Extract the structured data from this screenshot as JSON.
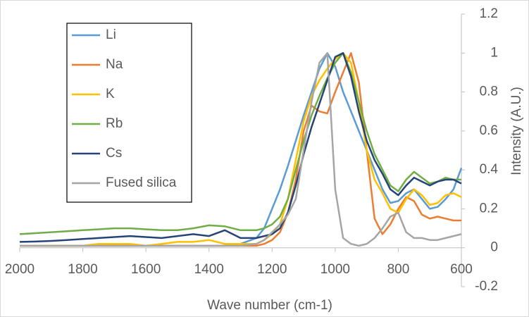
{
  "chart_data": {
    "type": "line",
    "x_label": "Wave number (cm-1)",
    "y_label": "Intensity (A.U.)",
    "x": [
      2000,
      1950,
      1900,
      1850,
      1800,
      1750,
      1700,
      1650,
      1600,
      1550,
      1500,
      1450,
      1400,
      1350,
      1300,
      1250,
      1225,
      1200,
      1175,
      1150,
      1125,
      1100,
      1075,
      1050,
      1025,
      1000,
      975,
      950,
      925,
      900,
      875,
      850,
      825,
      800,
      775,
      750,
      725,
      700,
      675,
      650,
      625,
      600
    ],
    "series": [
      {
        "name": "Li",
        "color": "#5b9bd5",
        "values": [
          0.01,
          0.01,
          0.01,
          0.01,
          0.01,
          0.01,
          0.01,
          0.01,
          0.01,
          0.01,
          0.01,
          0.01,
          0.01,
          0.01,
          0.02,
          0.05,
          0.1,
          0.2,
          0.3,
          0.42,
          0.55,
          0.68,
          0.8,
          0.92,
          1.0,
          0.93,
          0.8,
          0.7,
          0.6,
          0.5,
          0.4,
          0.3,
          0.23,
          0.24,
          0.28,
          0.3,
          0.25,
          0.2,
          0.21,
          0.25,
          0.3,
          0.41
        ]
      },
      {
        "name": "Na",
        "color": "#ed7d31",
        "values": [
          0.01,
          0.01,
          0.01,
          0.01,
          0.01,
          0.01,
          0.01,
          0.01,
          0.01,
          0.01,
          0.01,
          0.01,
          0.01,
          0.01,
          0.01,
          0.01,
          0.02,
          0.04,
          0.08,
          0.18,
          0.35,
          0.6,
          0.73,
          0.7,
          0.69,
          0.8,
          0.9,
          1.0,
          0.85,
          0.5,
          0.15,
          0.07,
          0.12,
          0.2,
          0.26,
          0.24,
          0.17,
          0.15,
          0.16,
          0.15,
          0.14,
          0.14
        ]
      },
      {
        "name": "K",
        "color": "#ffc000",
        "values": [
          0.01,
          0.01,
          0.01,
          0.01,
          0.01,
          0.02,
          0.02,
          0.02,
          0.01,
          0.02,
          0.03,
          0.03,
          0.04,
          0.02,
          0.02,
          0.02,
          0.04,
          0.07,
          0.12,
          0.25,
          0.45,
          0.65,
          0.78,
          0.86,
          0.92,
          0.97,
          1.0,
          0.95,
          0.75,
          0.5,
          0.35,
          0.28,
          0.2,
          0.18,
          0.25,
          0.3,
          0.27,
          0.22,
          0.23,
          0.27,
          0.28,
          0.26
        ]
      },
      {
        "name": "Rb",
        "color": "#70ad47",
        "values": [
          0.07,
          0.075,
          0.08,
          0.085,
          0.09,
          0.095,
          0.1,
          0.1,
          0.095,
          0.09,
          0.09,
          0.1,
          0.115,
          0.11,
          0.09,
          0.09,
          0.1,
          0.12,
          0.16,
          0.25,
          0.4,
          0.55,
          0.68,
          0.78,
          0.87,
          0.95,
          1.0,
          0.9,
          0.75,
          0.6,
          0.48,
          0.4,
          0.32,
          0.29,
          0.35,
          0.39,
          0.36,
          0.33,
          0.34,
          0.36,
          0.35,
          0.35
        ]
      },
      {
        "name": "Cs",
        "color": "#264478",
        "values": [
          0.03,
          0.032,
          0.035,
          0.04,
          0.045,
          0.05,
          0.055,
          0.06,
          0.055,
          0.05,
          0.06,
          0.07,
          0.06,
          0.09,
          0.05,
          0.05,
          0.06,
          0.07,
          0.1,
          0.18,
          0.32,
          0.48,
          0.62,
          0.74,
          0.86,
          0.98,
          1.0,
          0.88,
          0.7,
          0.55,
          0.45,
          0.38,
          0.3,
          0.27,
          0.32,
          0.36,
          0.34,
          0.32,
          0.34,
          0.35,
          0.35,
          0.33
        ]
      },
      {
        "name": "Fused silica",
        "color": "#a5a5a5",
        "values": [
          0.01,
          0.01,
          0.01,
          0.01,
          0.01,
          0.01,
          0.01,
          0.01,
          0.01,
          0.01,
          0.01,
          0.01,
          0.01,
          0.01,
          0.01,
          0.02,
          0.04,
          0.08,
          0.12,
          0.17,
          0.25,
          0.5,
          0.75,
          0.95,
          1.0,
          0.3,
          0.05,
          0.02,
          0.01,
          0.02,
          0.05,
          0.1,
          0.16,
          0.18,
          0.08,
          0.05,
          0.05,
          0.04,
          0.04,
          0.05,
          0.06,
          0.07
        ]
      }
    ],
    "xlim": [
      2000,
      600
    ],
    "xticks": [
      2000,
      1800,
      1600,
      1400,
      1200,
      1000,
      800,
      600
    ],
    "ylim": [
      -0.2,
      1.2
    ],
    "yticks": [
      -0.2,
      0,
      0.2,
      0.4,
      0.6,
      0.8,
      1,
      1.2
    ],
    "legend": "top-left",
    "grid": false
  }
}
